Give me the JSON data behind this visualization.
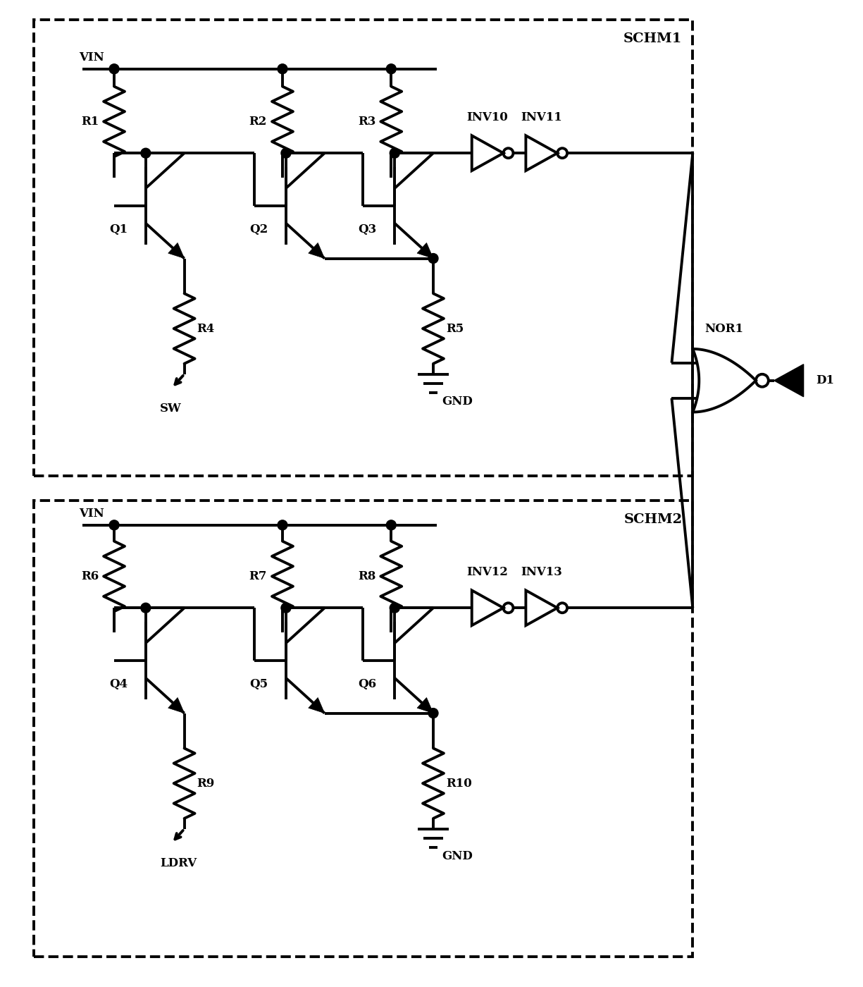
{
  "bg_color": "#ffffff",
  "lw": 2.8,
  "fs": 12,
  "fs_label": 13,
  "schm1_label": "SCHM1",
  "schm2_label": "SCHM2",
  "nor1_label": "NOR1",
  "d1_label": "D1",
  "vin_label": "VIN",
  "gnd_label": "GND",
  "sw_label": "SW",
  "ldrv_label": "LDRV"
}
